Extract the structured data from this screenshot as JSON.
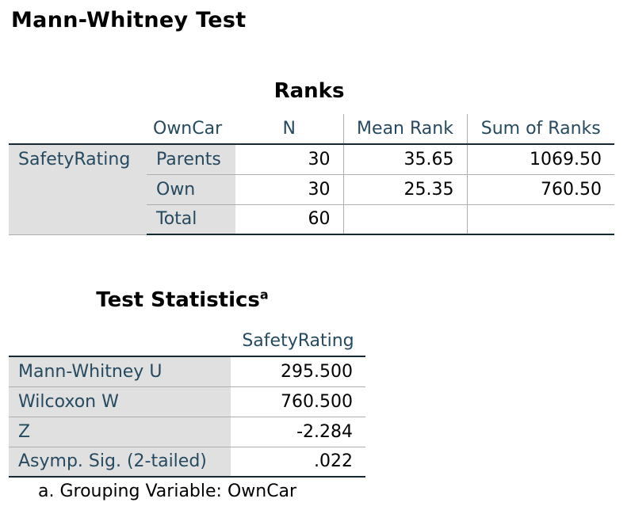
{
  "heading": "Mann-Whitney Test",
  "ranks": {
    "title": "Ranks",
    "headers": {
      "group_var": "OwnCar",
      "n": "N",
      "mean_rank": "Mean Rank",
      "sum_ranks": "Sum of Ranks"
    },
    "variable": "SafetyRating",
    "rows": [
      {
        "group": "Parents",
        "n": "30",
        "mean_rank": "35.65",
        "sum_ranks": "1069.50"
      },
      {
        "group": "Own",
        "n": "30",
        "mean_rank": "25.35",
        "sum_ranks": "760.50"
      },
      {
        "group": "Total",
        "n": "60",
        "mean_rank": "",
        "sum_ranks": ""
      }
    ]
  },
  "stats": {
    "title": "Test Statistics",
    "title_sup": "a",
    "column": "SafetyRating",
    "rows": [
      {
        "label": "Mann-Whitney U",
        "value": "295.500"
      },
      {
        "label": "Wilcoxon W",
        "value": "760.500"
      },
      {
        "label": "Z",
        "value": "-2.284"
      },
      {
        "label": "Asymp. Sig. (2-tailed)",
        "value": ".022"
      }
    ]
  },
  "footnote": "a. Grouping Variable: OwnCar"
}
